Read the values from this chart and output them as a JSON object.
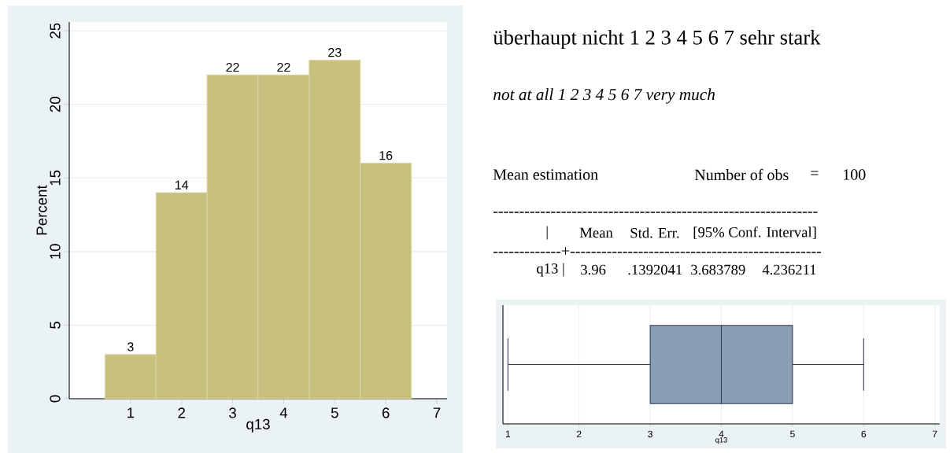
{
  "chart_data": [
    {
      "type": "histogram",
      "bins": [
        0.5,
        1.5,
        2.5,
        3.5,
        4.5,
        5.5,
        6.5
      ],
      "values": [
        3,
        14,
        22,
        22,
        23,
        16
      ],
      "color": "#c8c07e",
      "xlabel": "q13",
      "ylabel": "Percent",
      "xlim": [
        -0.2,
        7.2
      ],
      "ylim": [
        0,
        25.6
      ],
      "xticks": [
        1,
        2,
        3,
        4,
        5,
        6,
        7
      ],
      "yticks": [
        0,
        5,
        10,
        15,
        20,
        25
      ],
      "grid": "y",
      "data_labels": true
    },
    {
      "type": "other",
      "annotations": [
        "überhaupt nicht 1 2 3 4 5 6 7 sehr stark",
        "not at all 1 2 3 4 5 6 7 very much",
        "Mean estimation",
        "Number of obs",
        "=",
        "100",
        "--------------------------------------------------------------",
        "|",
        "Mean",
        "Std. Err.",
        "[95% Conf. Interval]",
        "-------------+------------------------------------------------",
        "q13 |",
        "3.96",
        ".1392041",
        "3.683789",
        "4.236211"
      ]
    },
    {
      "type": "box",
      "orientation": "horizontal",
      "categories": [
        null
      ],
      "boxes": [
        {
          "low": 1,
          "q1": 3,
          "median": 4,
          "q3": 5,
          "high": 6
        }
      ],
      "color": "#8a9fb3",
      "xlabel": "q13",
      "xlim": [
        0.93,
        7.07
      ],
      "xticks": [
        1,
        2,
        3,
        4,
        5,
        6,
        7
      ],
      "grid": "x"
    }
  ]
}
